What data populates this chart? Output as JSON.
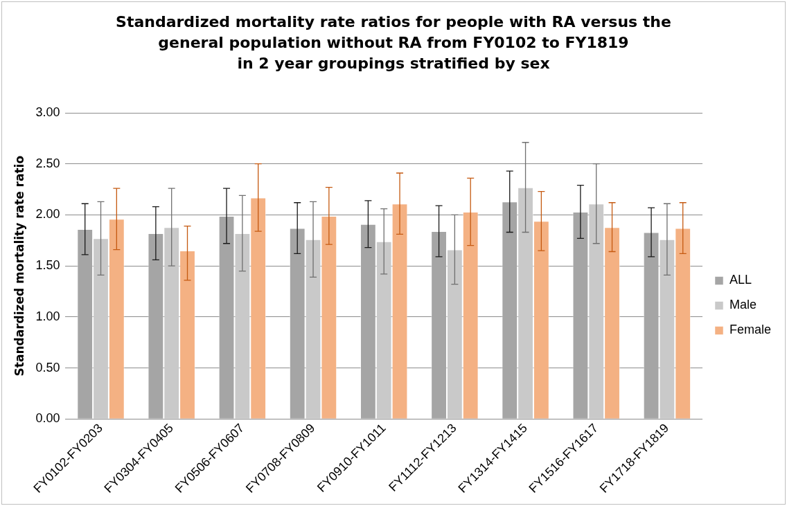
{
  "chart_data": {
    "type": "bar",
    "title": "Standardized mortality rate ratios for people with RA versus the\ngeneral population without RA from FY0102 to FY1819\nin 2 year groupings stratified by sex",
    "ylabel": "Standardized mortality rate ratio",
    "categories": [
      "FY0102-FY0203",
      "FY0304-FY0405",
      "FY0506-FY0607",
      "FY0708-FY0809",
      "FY0910-FY1011",
      "FY1112-FY1213",
      "FY1314-FY1415",
      "FY1516-FY1617",
      "FY1718-FY1819"
    ],
    "series": [
      {
        "name": "ALL",
        "color": "#a5a5a5",
        "values": [
          1.86,
          1.82,
          1.99,
          1.87,
          1.91,
          1.84,
          2.13,
          2.03,
          1.83
        ],
        "errors": [
          [
            1.61,
            2.11
          ],
          [
            1.56,
            2.08
          ],
          [
            1.72,
            2.26
          ],
          [
            1.62,
            2.12
          ],
          [
            1.68,
            2.14
          ],
          [
            1.59,
            2.09
          ],
          [
            1.83,
            2.43
          ],
          [
            1.77,
            2.29
          ],
          [
            1.59,
            2.07
          ]
        ]
      },
      {
        "name": "Male",
        "color": "#c9c9c9",
        "values": [
          1.77,
          1.88,
          1.82,
          1.76,
          1.74,
          1.66,
          2.27,
          2.11,
          1.76
        ],
        "errors": [
          [
            1.41,
            2.13
          ],
          [
            1.5,
            2.26
          ],
          [
            1.45,
            2.19
          ],
          [
            1.39,
            2.13
          ],
          [
            1.42,
            2.06
          ],
          [
            1.32,
            2.0
          ],
          [
            1.83,
            2.71
          ],
          [
            1.72,
            2.5
          ],
          [
            1.41,
            2.11
          ]
        ]
      },
      {
        "name": "Female",
        "color": "#f4b183",
        "values": [
          1.96,
          1.65,
          2.17,
          1.99,
          2.11,
          2.03,
          1.94,
          1.88,
          1.87
        ],
        "errors": [
          [
            1.66,
            2.26
          ],
          [
            1.36,
            1.89
          ],
          [
            1.84,
            2.5
          ],
          [
            1.71,
            2.27
          ],
          [
            1.81,
            2.41
          ],
          [
            1.7,
            2.36
          ],
          [
            1.65,
            2.23
          ],
          [
            1.64,
            2.12
          ],
          [
            1.62,
            2.12
          ]
        ]
      }
    ],
    "ylim": [
      0,
      3
    ],
    "yticks": [
      {
        "value": 0,
        "label": "0.00"
      },
      {
        "value": 0.5,
        "label": "0.50"
      },
      {
        "value": 1,
        "label": "1.00"
      },
      {
        "value": 1.5,
        "label": "1.50"
      },
      {
        "value": 2,
        "label": "2.00"
      },
      {
        "value": 2.5,
        "label": "2.50"
      },
      {
        "value": 3,
        "label": "3.00"
      }
    ],
    "grid": "y",
    "legend": "right"
  }
}
